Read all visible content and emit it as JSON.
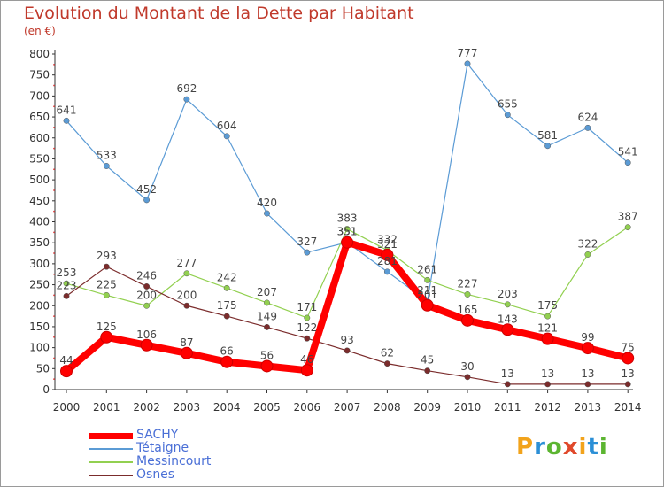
{
  "header": {
    "title": "Evolution du Montant de la Dette par Habitant",
    "unit": "(en €)"
  },
  "logo": {
    "text": "Proxiti",
    "colors": [
      "#f2a31b",
      "#2b8fd6",
      "#5cb531",
      "#e0492b",
      "#f2a31b",
      "#2b8fd6",
      "#5cb531"
    ]
  },
  "chart_data": {
    "type": "line",
    "title": "Evolution du Montant de la Dette par Habitant",
    "ylabel": "(en €)",
    "xlabel": "",
    "ylim": [
      0,
      800
    ],
    "yticks": [
      0,
      50,
      100,
      150,
      200,
      250,
      300,
      350,
      400,
      450,
      500,
      550,
      600,
      650,
      700,
      750,
      800
    ],
    "grid": false,
    "legend_position": "bottom-left",
    "categories": [
      "2000",
      "2001",
      "2002",
      "2003",
      "2004",
      "2005",
      "2006",
      "2007",
      "2008",
      "2009",
      "2010",
      "2011",
      "2012",
      "2013",
      "2014"
    ],
    "series": [
      {
        "name": "SACHY",
        "color": "#ff0000",
        "values": [
          44,
          125,
          106,
          87,
          66,
          56,
          46,
          351,
          321,
          201,
          165,
          143,
          121,
          99,
          75
        ]
      },
      {
        "name": "Tétaigne",
        "color": "#5b9bd5",
        "values": [
          641,
          533,
          452,
          692,
          604,
          420,
          327,
          351,
          281,
          211,
          777,
          655,
          581,
          624,
          541
        ]
      },
      {
        "name": "Messincourt",
        "color": "#92d050",
        "values": [
          253,
          225,
          200,
          277,
          242,
          207,
          171,
          383,
          332,
          261,
          227,
          203,
          175,
          322,
          387
        ]
      },
      {
        "name": "Osnes",
        "color": "#7b2c2c",
        "values": [
          223,
          293,
          246,
          200,
          175,
          149,
          122,
          93,
          62,
          45,
          30,
          13,
          13,
          13,
          13
        ]
      }
    ]
  }
}
